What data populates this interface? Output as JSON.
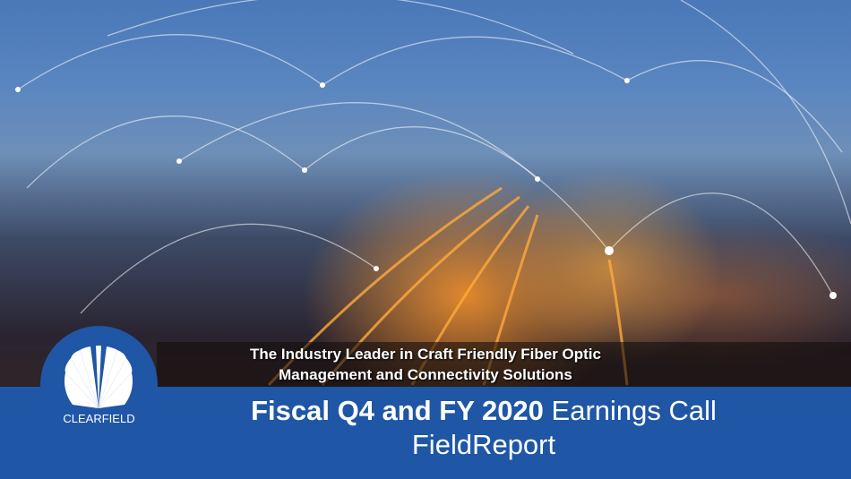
{
  "slide": {
    "tagline_line1": "The Industry Leader in Craft Friendly Fiber Optic",
    "tagline_line2": "Management and Connectivity Solutions",
    "title_bold": "Fiscal Q4 and FY 2020",
    "title_regular": " Earnings Call",
    "subtitle": "FieldReport"
  },
  "logo": {
    "name": "CLEARFIELD",
    "icon": "shell-logo-icon"
  },
  "colors": {
    "band": "#1f56a6",
    "text": "#ffffff"
  }
}
